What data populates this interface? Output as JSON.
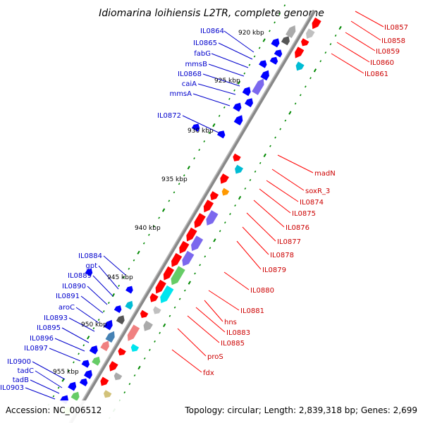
{
  "title": "Idiomarina loihiensis L2TR, complete genome",
  "footer": {
    "accession": "Accession: NC_006512",
    "summary": "Topology: circular; Length: 2,839,318 bp; Genes: 2,699"
  },
  "kbp_ticks": [
    "920 kbp",
    "925 kbp",
    "930 kbp",
    "935 kbp",
    "940 kbp",
    "945 kbp",
    "950 kbp",
    "955 kbp"
  ],
  "left_labels": [
    "IL0864",
    "IL0865",
    "fabG",
    "mmsB",
    "IL0868",
    "caiA",
    "mmsA",
    "IL0872",
    "IL0884",
    "gpt",
    "IL0889",
    "IL0890",
    "IL0891",
    "aroC",
    "IL0893",
    "IL0895",
    "IL0896",
    "IL0897",
    "IL0900",
    "tadC",
    "tadB",
    "IL0903"
  ],
  "right_labels": [
    "IL0857",
    "IL0858",
    "IL0859",
    "IL0860",
    "IL0861",
    "madN",
    "soxR_3",
    "IL0874",
    "IL0875",
    "IL0876",
    "IL0877",
    "IL0878",
    "IL0879",
    "IL0880",
    "IL0881",
    "hns",
    "IL0883",
    "IL0885",
    "proS",
    "fdx"
  ],
  "colors": {
    "backbone": "#888888",
    "forward_gene": "#ff0000",
    "reverse_gene": "#0000ff",
    "left_label": "#0000cc",
    "right_label": "#cc0000",
    "tick": "#008800"
  }
}
